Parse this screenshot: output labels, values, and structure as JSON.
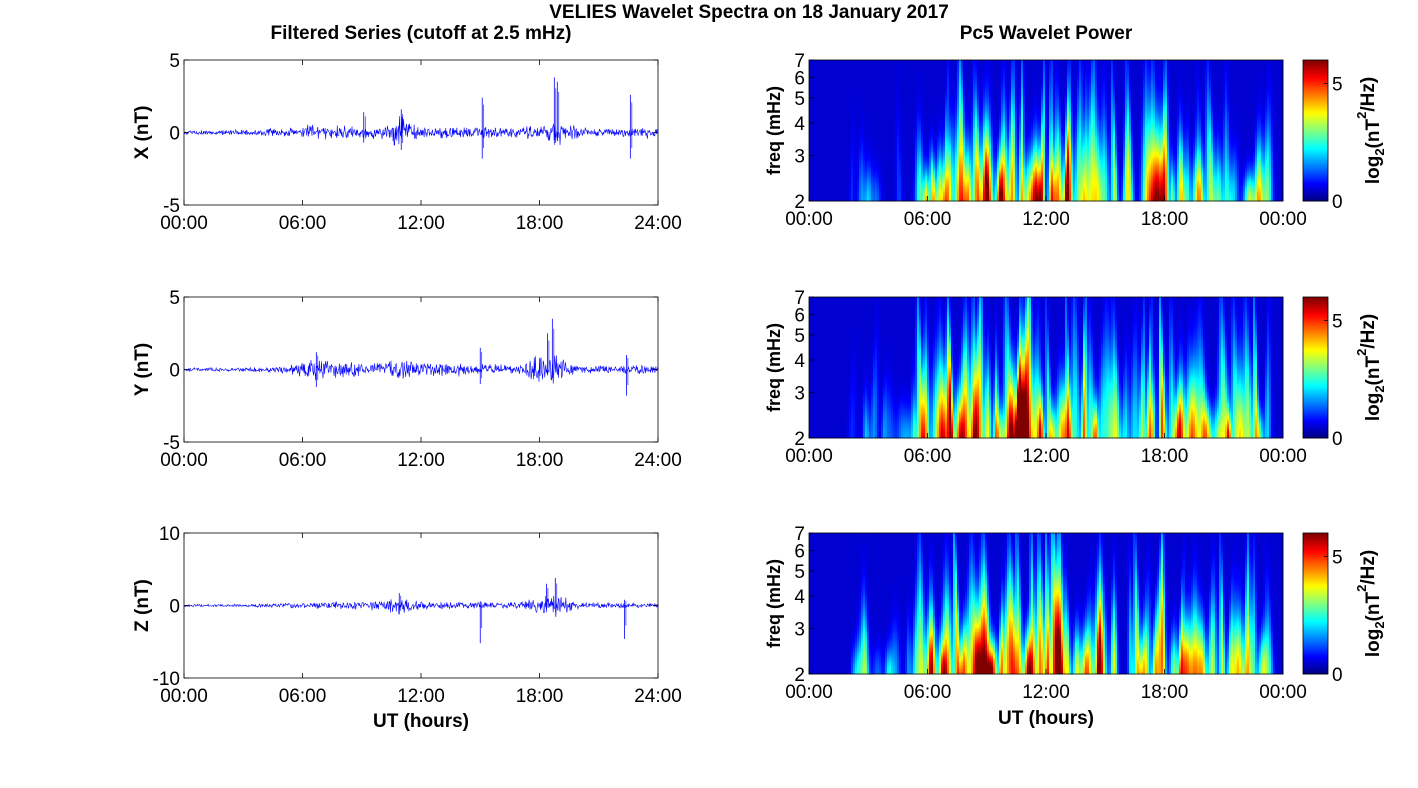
{
  "figure": {
    "title": "VELIES Wavelet Spectra on 18 January 2017",
    "left_column_title": "Filtered Series (cutoff at 2.5 mHz)",
    "right_column_title": "Pc5 Wavelet Power"
  },
  "chart_data": [
    {
      "type": "line",
      "component": "X",
      "ylabel": "X (nT)",
      "xlabel": "",
      "xlim": [
        0,
        24
      ],
      "ylim": [
        -5,
        5
      ],
      "xticks": [
        "00:00",
        "06:00",
        "12:00",
        "18:00",
        "24:00"
      ],
      "yticks": [
        "-5",
        "0",
        "5"
      ],
      "series": [
        {
          "color": "#0000ff",
          "envelope_hours": [
            0,
            2,
            4,
            5.5,
            6,
            8,
            10,
            11,
            12,
            14,
            15,
            17,
            18,
            19,
            20,
            22,
            23,
            24
          ],
          "envelope_nT": [
            0.15,
            0.2,
            0.25,
            0.4,
            0.6,
            0.5,
            0.5,
            1.3,
            0.5,
            0.4,
            0.5,
            0.4,
            0.6,
            1.0,
            0.4,
            0.3,
            0.5,
            0.4
          ],
          "spikes": [
            {
              "hour": 18.75,
              "min": -0.5,
              "max": 3.8
            },
            {
              "hour": 18.9,
              "min": -0.6,
              "max": 3.5
            },
            {
              "hour": 15.1,
              "min": -1.8,
              "max": 2.4
            },
            {
              "hour": 22.6,
              "min": -1.8,
              "max": 2.6
            },
            {
              "hour": 11.0,
              "min": -1.2,
              "max": 1.6
            },
            {
              "hour": 9.1,
              "min": -0.7,
              "max": 1.4
            }
          ]
        }
      ]
    },
    {
      "type": "line",
      "component": "Y",
      "ylabel": "Y (nT)",
      "xlabel": "",
      "xlim": [
        0,
        24
      ],
      "ylim": [
        -5,
        5
      ],
      "xticks": [
        "00:00",
        "06:00",
        "12:00",
        "18:00",
        "24:00"
      ],
      "yticks": [
        "-5",
        "0",
        "5"
      ],
      "series": [
        {
          "color": "#0000ff",
          "envelope_hours": [
            0,
            2,
            4,
            5.5,
            6.5,
            8,
            10,
            11,
            12,
            14,
            15,
            17,
            18,
            19,
            20,
            22,
            23,
            24
          ],
          "envelope_nT": [
            0.15,
            0.15,
            0.2,
            0.4,
            0.9,
            0.6,
            0.5,
            0.8,
            0.5,
            0.5,
            0.4,
            0.4,
            1.2,
            1.0,
            0.3,
            0.3,
            0.4,
            0.3
          ],
          "spikes": [
            {
              "hour": 18.65,
              "min": -0.6,
              "max": 3.5
            },
            {
              "hour": 18.4,
              "min": -0.4,
              "max": 2.5
            },
            {
              "hour": 15.0,
              "min": -1.0,
              "max": 1.5
            },
            {
              "hour": 22.4,
              "min": -1.8,
              "max": 1.0
            },
            {
              "hour": 6.7,
              "min": -1.2,
              "max": 1.2
            }
          ]
        }
      ]
    },
    {
      "type": "line",
      "component": "Z",
      "ylabel": "Z (nT)",
      "xlabel": "UT (hours)",
      "xlim": [
        0,
        24
      ],
      "ylim": [
        -10,
        10
      ],
      "xticks": [
        "00:00",
        "06:00",
        "12:00",
        "18:00",
        "24:00"
      ],
      "yticks": [
        "-10",
        "0",
        "10"
      ],
      "series": [
        {
          "color": "#0000ff",
          "envelope_hours": [
            0,
            2,
            4,
            6,
            8,
            10,
            11,
            12,
            14,
            16,
            17,
            18,
            19,
            20,
            22,
            24
          ],
          "envelope_nT": [
            0.2,
            0.2,
            0.3,
            0.4,
            0.6,
            0.8,
            1.5,
            0.6,
            0.5,
            0.5,
            0.5,
            1.5,
            1.8,
            0.5,
            0.4,
            0.3
          ],
          "spikes": [
            {
              "hour": 18.8,
              "min": -0.5,
              "max": 3.8
            },
            {
              "hour": 18.35,
              "min": -0.5,
              "max": 3.0
            },
            {
              "hour": 15.0,
              "min": -5.2,
              "max": 0.6
            },
            {
              "hour": 22.3,
              "min": -4.6,
              "max": 0.8
            },
            {
              "hour": 10.9,
              "min": -1.2,
              "max": 1.7
            }
          ]
        }
      ]
    },
    {
      "type": "heatmap",
      "component": "X",
      "ylabel": "freq (mHz)",
      "xlabel": "",
      "xlim": [
        0,
        24
      ],
      "ylim": [
        2,
        7
      ],
      "yscale": "log",
      "xticks": [
        "00:00",
        "06:00",
        "12:00",
        "18:00",
        "00:00"
      ],
      "yticks": [
        "2",
        "3",
        "4",
        "5",
        "6",
        "7"
      ],
      "colormap": "jet",
      "colorbar": {
        "label": "log2(nT2/Hz)",
        "label_main": "log",
        "label_sub": "2",
        "label_mid": "(nT",
        "label_sup": "2",
        "label_end": "/Hz)",
        "range": [
          0,
          6
        ],
        "ticks": [
          "0",
          "5"
        ]
      },
      "seed": 11,
      "activity_hours": [
        0,
        2,
        2.5,
        4,
        5,
        5.5,
        6,
        8,
        9,
        10,
        11,
        12,
        13,
        14,
        15,
        16,
        17,
        18,
        19,
        20,
        21,
        22,
        23,
        23.5,
        24
      ],
      "activity_level": [
        0,
        0,
        0.35,
        0.3,
        0.2,
        0.5,
        0.7,
        0.75,
        0.9,
        0.95,
        1.0,
        0.9,
        0.75,
        0.7,
        0.6,
        0.6,
        0.65,
        0.85,
        0.7,
        0.6,
        0.55,
        0.6,
        0.7,
        0.2,
        0
      ]
    },
    {
      "type": "heatmap",
      "component": "Y",
      "ylabel": "freq (mHz)",
      "xlabel": "",
      "xlim": [
        0,
        24
      ],
      "ylim": [
        2,
        7
      ],
      "yscale": "log",
      "xticks": [
        "00:00",
        "06:00",
        "12:00",
        "18:00",
        "00:00"
      ],
      "yticks": [
        "2",
        "3",
        "4",
        "5",
        "6",
        "7"
      ],
      "colormap": "jet",
      "colorbar": {
        "label": "log2(nT2/Hz)",
        "label_main": "log",
        "label_sub": "2",
        "label_mid": "(nT",
        "label_sup": "2",
        "label_end": "/Hz)",
        "range": [
          0,
          6
        ],
        "ticks": [
          "0",
          "5"
        ]
      },
      "seed": 23,
      "activity_hours": [
        0,
        2,
        2.5,
        4,
        5,
        5.5,
        6,
        7,
        8,
        9,
        10,
        11,
        12,
        13,
        14,
        15,
        16,
        17,
        18,
        19,
        20,
        21,
        22,
        23,
        23.5,
        24
      ],
      "activity_level": [
        0,
        0,
        0.3,
        0.3,
        0.2,
        0.5,
        0.8,
        0.9,
        0.85,
        0.8,
        0.85,
        1.0,
        0.85,
        0.7,
        0.8,
        0.6,
        0.55,
        0.6,
        0.9,
        0.6,
        0.55,
        0.7,
        0.6,
        0.65,
        0.3,
        0
      ]
    },
    {
      "type": "heatmap",
      "component": "Z",
      "ylabel": "freq (mHz)",
      "xlabel": "UT (hours)",
      "xlim": [
        0,
        24
      ],
      "ylim": [
        2,
        7
      ],
      "yscale": "log",
      "xticks": [
        "00:00",
        "06:00",
        "12:00",
        "18:00",
        "00:00"
      ],
      "yticks": [
        "2",
        "3",
        "4",
        "5",
        "6",
        "7"
      ],
      "colormap": "jet",
      "colorbar": {
        "label": "log2(nT2/Hz)",
        "label_main": "log",
        "label_sub": "2",
        "label_mid": "(nT",
        "label_sup": "2",
        "label_end": "/Hz)",
        "range": [
          0,
          6
        ],
        "ticks": [
          "0",
          "5"
        ]
      },
      "seed": 37,
      "activity_hours": [
        0,
        2,
        2.5,
        4,
        5,
        5.5,
        6,
        8,
        9,
        10,
        11,
        12,
        13,
        14,
        15,
        16,
        17,
        18,
        19,
        20,
        21,
        22,
        23,
        23.5,
        24
      ],
      "activity_level": [
        0,
        0,
        0.35,
        0.3,
        0.2,
        0.5,
        0.75,
        0.8,
        0.9,
        0.95,
        1.0,
        0.9,
        0.75,
        0.7,
        0.65,
        0.6,
        0.65,
        0.85,
        0.7,
        0.6,
        0.6,
        0.65,
        0.7,
        0.25,
        0
      ]
    }
  ]
}
